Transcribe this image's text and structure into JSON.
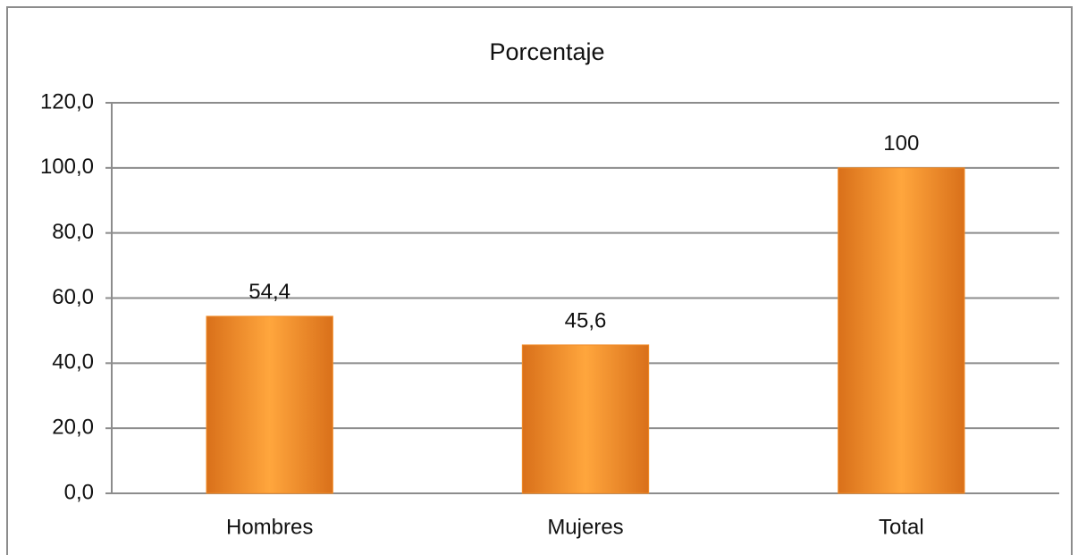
{
  "chart_data": {
    "type": "bar",
    "title": "Porcentaje",
    "categories": [
      "Hombres",
      "Mujeres",
      "Total"
    ],
    "values": [
      54.4,
      45.6,
      100
    ],
    "value_labels": [
      "54,4",
      "45,6",
      "100"
    ],
    "color": "#f28c28",
    "ylim": [
      0,
      120
    ],
    "yticks": [
      {
        "value": 0,
        "label": "0,0"
      },
      {
        "value": 20,
        "label": "20,0"
      },
      {
        "value": 40,
        "label": "40,0"
      },
      {
        "value": 60,
        "label": "60,0"
      },
      {
        "value": 80,
        "label": "80,0"
      },
      {
        "value": 100,
        "label": "100,0"
      },
      {
        "value": 120,
        "label": "120,0"
      }
    ],
    "grid": true
  }
}
